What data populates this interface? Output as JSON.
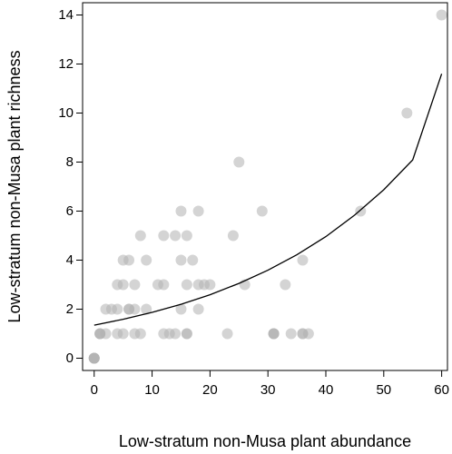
{
  "chart_data": {
    "type": "scatter",
    "title": "",
    "xlabel": "Low-stratum non-Musa plant abundance",
    "ylabel": "Low-stratum non-Musa plant richness",
    "xlim": [
      -2,
      61
    ],
    "ylim": [
      -0.5,
      14.5
    ],
    "xticks": [
      "0",
      "10",
      "20",
      "30",
      "40",
      "50",
      "60"
    ],
    "yticks": [
      "0",
      "2",
      "4",
      "6",
      "8",
      "10",
      "12",
      "14"
    ],
    "grid": false,
    "legend": "none",
    "point_color": "#b0b0b0",
    "point_opacity": 0.55,
    "line_color": "#000000",
    "points": [
      {
        "x": 0,
        "y": 0
      },
      {
        "x": 0,
        "y": 0
      },
      {
        "x": 0,
        "y": 0
      },
      {
        "x": 0,
        "y": 0
      },
      {
        "x": 1,
        "y": 1
      },
      {
        "x": 1,
        "y": 1
      },
      {
        "x": 1,
        "y": 1
      },
      {
        "x": 2,
        "y": 1
      },
      {
        "x": 2,
        "y": 2
      },
      {
        "x": 3,
        "y": 2
      },
      {
        "x": 4,
        "y": 1
      },
      {
        "x": 4,
        "y": 2
      },
      {
        "x": 4,
        "y": 3
      },
      {
        "x": 5,
        "y": 1
      },
      {
        "x": 5,
        "y": 3
      },
      {
        "x": 5,
        "y": 4
      },
      {
        "x": 6,
        "y": 2
      },
      {
        "x": 6,
        "y": 2
      },
      {
        "x": 6,
        "y": 4
      },
      {
        "x": 7,
        "y": 1
      },
      {
        "x": 7,
        "y": 2
      },
      {
        "x": 7,
        "y": 3
      },
      {
        "x": 8,
        "y": 1
      },
      {
        "x": 8,
        "y": 5
      },
      {
        "x": 9,
        "y": 2
      },
      {
        "x": 9,
        "y": 4
      },
      {
        "x": 11,
        "y": 3
      },
      {
        "x": 12,
        "y": 1
      },
      {
        "x": 12,
        "y": 3
      },
      {
        "x": 12,
        "y": 5
      },
      {
        "x": 13,
        "y": 1
      },
      {
        "x": 14,
        "y": 1
      },
      {
        "x": 14,
        "y": 5
      },
      {
        "x": 15,
        "y": 2
      },
      {
        "x": 15,
        "y": 4
      },
      {
        "x": 15,
        "y": 6
      },
      {
        "x": 16,
        "y": 1
      },
      {
        "x": 16,
        "y": 1
      },
      {
        "x": 16,
        "y": 3
      },
      {
        "x": 16,
        "y": 5
      },
      {
        "x": 17,
        "y": 4
      },
      {
        "x": 18,
        "y": 2
      },
      {
        "x": 18,
        "y": 3
      },
      {
        "x": 18,
        "y": 6
      },
      {
        "x": 19,
        "y": 3
      },
      {
        "x": 20,
        "y": 3
      },
      {
        "x": 23,
        "y": 1
      },
      {
        "x": 24,
        "y": 5
      },
      {
        "x": 25,
        "y": 8
      },
      {
        "x": 26,
        "y": 3
      },
      {
        "x": 29,
        "y": 6
      },
      {
        "x": 31,
        "y": 1
      },
      {
        "x": 31,
        "y": 1
      },
      {
        "x": 31,
        "y": 1
      },
      {
        "x": 33,
        "y": 3
      },
      {
        "x": 34,
        "y": 1
      },
      {
        "x": 36,
        "y": 1
      },
      {
        "x": 36,
        "y": 1
      },
      {
        "x": 36,
        "y": 4
      },
      {
        "x": 37,
        "y": 1
      },
      {
        "x": 46,
        "y": 6
      },
      {
        "x": 54,
        "y": 10
      },
      {
        "x": 60,
        "y": 14
      }
    ],
    "curve": {
      "x": [
        0,
        5,
        10,
        15,
        20,
        25,
        30,
        35,
        40,
        45,
        50,
        55,
        60
      ],
      "y": [
        1.35,
        1.59,
        1.87,
        2.2,
        2.59,
        3.05,
        3.59,
        4.22,
        4.96,
        5.84,
        6.87,
        8.09,
        11.6
      ]
    }
  }
}
